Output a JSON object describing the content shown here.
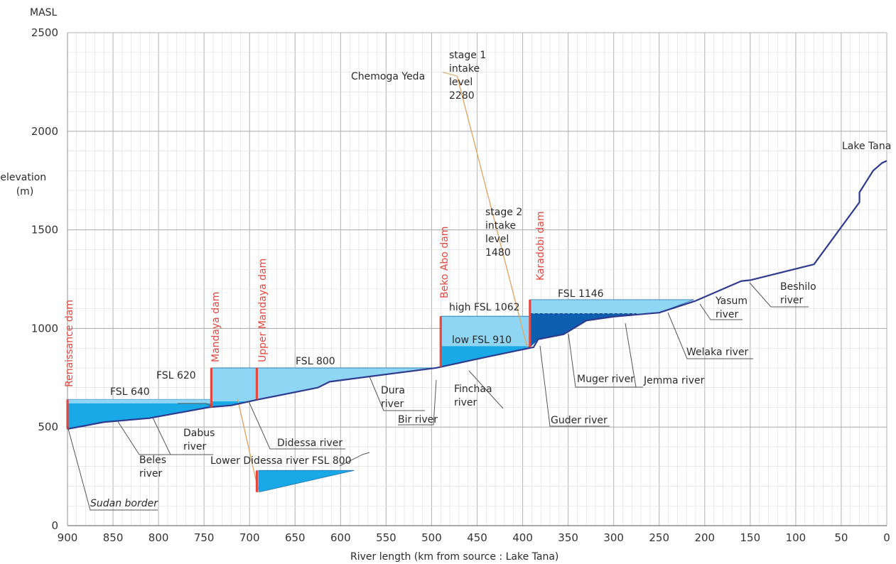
{
  "chart_data": {
    "type": "area",
    "title": "",
    "xlabel": "River length (km from source : Lake Tana)",
    "ylabel": "elevation\n(m)",
    "y_unit": "MASL",
    "xlim": [
      900,
      0
    ],
    "ylim": [
      0,
      2500
    ],
    "x_reversed": true,
    "x_ticks": [
      900,
      850,
      800,
      750,
      700,
      650,
      600,
      550,
      500,
      450,
      400,
      350,
      300,
      250,
      200,
      150,
      100,
      50,
      0
    ],
    "y_ticks": [
      0,
      500,
      1000,
      1500,
      2000,
      2500
    ],
    "grid": true,
    "colors": {
      "river": "#2f3a8f",
      "reservoir_light": "#8ed6f3",
      "reservoir_mid": "#19a9e6",
      "reservoir_dark": "#0b5fae",
      "dam": "#e2483f",
      "tunnel": "#e0a868",
      "grid": "#c8c8c8"
    },
    "river_profile": {
      "x": [
        900,
        860,
        810,
        745,
        720,
        690,
        625,
        612,
        495,
        485,
        440,
        388,
        383,
        355,
        330,
        300,
        250,
        210,
        160,
        150,
        80,
        30,
        30,
        15,
        5,
        0
      ],
      "y": [
        490,
        525,
        545,
        600,
        610,
        640,
        700,
        730,
        800,
        810,
        855,
        905,
        945,
        970,
        1040,
        1060,
        1080,
        1140,
        1240,
        1245,
        1325,
        1640,
        1690,
        1800,
        1840,
        1850
      ]
    },
    "dams": [
      {
        "name": "Renaissance dam",
        "x": 900,
        "fsl": 640
      },
      {
        "name": "Mandaya dam",
        "x": 742,
        "fsl": 800
      },
      {
        "name": "Upper Mandaya dam",
        "x": 692,
        "fsl": 800
      },
      {
        "name": "Beko Abo dam",
        "x": 490,
        "fsl": 1062
      },
      {
        "name": "Karadobi dam",
        "x": 392,
        "fsl": 1146
      }
    ],
    "reservoir_labels": [
      "FSL 640",
      "FSL 620",
      "FSL 800",
      "high FSL 1062",
      "low FSL 910",
      "FSL 1146",
      "Lower Didessa river FSL 800"
    ],
    "tributaries": [
      "Beles river",
      "Dabus river",
      "Didessa river",
      "Dura river",
      "Bir river",
      "Finchaa river",
      "Guder river",
      "Muger river",
      "Jemma river",
      "Welaka river",
      "Yasum river",
      "Beshilo river"
    ],
    "annotations": [
      "Sudan border",
      "Lake Tana",
      "Chemoga Yeda",
      "stage 1\nintake\nlevel\n2280",
      "stage 2\nintake\nlevel\n1480"
    ]
  }
}
